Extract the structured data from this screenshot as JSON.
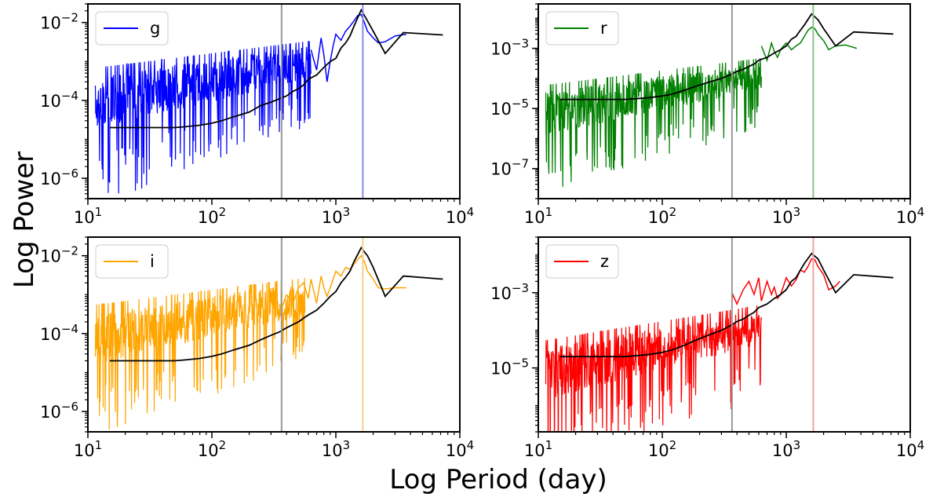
{
  "figure": {
    "xlabel": "Log Period (day)",
    "ylabel": "Log Power"
  },
  "chart_data": [
    {
      "type": "line",
      "band": "g",
      "legend": "g",
      "color": "#0000ff",
      "xscale": "log",
      "yscale": "log",
      "xlim": [
        10,
        10000
      ],
      "ylim": [
        3e-07,
        0.03
      ],
      "xticks": [
        {
          "base": "10",
          "exp": "1",
          "value": 10
        },
        {
          "base": "10",
          "exp": "2",
          "value": 100
        },
        {
          "base": "10",
          "exp": "3",
          "value": 1000
        },
        {
          "base": "10",
          "exp": "4",
          "value": 10000
        }
      ],
      "yticks": [
        {
          "base": "10",
          "exp": "−6",
          "value": 1e-06
        },
        {
          "base": "10",
          "exp": "−4",
          "value": 0.0001
        },
        {
          "base": "10",
          "exp": "−2",
          "value": 0.01
        }
      ],
      "vlines": [
        {
          "x": 365,
          "color": "#999999"
        },
        {
          "x": 1650,
          "color": "#8a8aee"
        }
      ],
      "noise": {
        "logP_start": 1.06,
        "logP_end": 2.8,
        "base_start": -4.2,
        "base_end": -3.1,
        "amp_start": 2.3,
        "amp_end": 1.4
      },
      "series": [
        {
          "role": "band",
          "color": "#0000ff",
          "x": [
            630,
            700,
            760,
            800,
            850,
            900,
            950,
            1000,
            1100,
            1200,
            1300,
            1400,
            1500,
            1600,
            1700,
            1800,
            2000,
            2200,
            2500,
            3000,
            3700
          ],
          "y": [
            0.002,
            0.0006,
            0.004,
            0.0015,
            0.0003,
            0.001,
            0.0025,
            0.005,
            0.0035,
            0.006,
            0.008,
            0.011,
            0.015,
            0.016,
            0.01,
            0.006,
            0.004,
            0.003,
            0.0032,
            0.0045,
            0.005
          ]
        },
        {
          "role": "model",
          "color": "#000000",
          "x": [
            15,
            20,
            25,
            30,
            40,
            50,
            60,
            80,
            100,
            120,
            150,
            200,
            250,
            300,
            350,
            400,
            450,
            500,
            550,
            600,
            700,
            800,
            900,
            1000,
            1100,
            1200,
            1300,
            1400,
            1600,
            1800,
            2000,
            2500,
            3500,
            7300
          ],
          "y": [
            2e-05,
            2e-05,
            2e-05,
            2e-05,
            2e-05,
            2e-05,
            2.1e-05,
            2.3e-05,
            2.6e-05,
            3e-05,
            3.8e-05,
            5e-05,
            7.5e-05,
            9e-05,
            0.00011,
            0.00013,
            0.00017,
            0.0002,
            0.00025,
            0.00035,
            0.00045,
            0.0007,
            0.001,
            0.0012,
            0.0022,
            0.003,
            0.0045,
            0.008,
            0.021,
            0.011,
            0.006,
            0.0016,
            0.0055,
            0.0048
          ]
        }
      ]
    },
    {
      "type": "line",
      "band": "r",
      "legend": "r",
      "color": "#007f00",
      "xscale": "log",
      "yscale": "log",
      "xlim": [
        10,
        10000
      ],
      "ylim": [
        1e-08,
        0.03
      ],
      "xticks": [
        {
          "base": "10",
          "exp": "1",
          "value": 10
        },
        {
          "base": "10",
          "exp": "2",
          "value": 100
        },
        {
          "base": "10",
          "exp": "3",
          "value": 1000
        },
        {
          "base": "10",
          "exp": "4",
          "value": 10000
        }
      ],
      "yticks": [
        {
          "base": "10",
          "exp": "−7",
          "value": 1e-07
        },
        {
          "base": "10",
          "exp": "−5",
          "value": 1e-05
        },
        {
          "base": "10",
          "exp": "−3",
          "value": 0.001
        }
      ],
      "vlines": [
        {
          "x": 365,
          "color": "#999999"
        },
        {
          "x": 1650,
          "color": "#88c488"
        }
      ],
      "noise": {
        "logP_start": 1.06,
        "logP_end": 2.8,
        "base_start": -5.3,
        "base_end": -4.0,
        "amp_start": 2.4,
        "amp_end": 1.5
      },
      "series": [
        {
          "role": "band",
          "color": "#007f00",
          "x": [
            630,
            700,
            760,
            800,
            850,
            900,
            950,
            1000,
            1100,
            1200,
            1300,
            1400,
            1500,
            1600,
            1700,
            1800,
            2000,
            2200,
            2500,
            3000,
            3700
          ],
          "y": [
            0.0012,
            0.0004,
            0.0015,
            0.0008,
            0.0005,
            0.0009,
            0.0012,
            0.0015,
            0.0009,
            0.0012,
            0.0015,
            0.0025,
            0.004,
            0.005,
            0.0045,
            0.003,
            0.0018,
            0.0009,
            0.0012,
            0.0013,
            0.001
          ]
        },
        {
          "role": "model",
          "color": "#000000",
          "x": [
            15,
            20,
            25,
            30,
            40,
            50,
            60,
            80,
            100,
            120,
            150,
            200,
            250,
            300,
            350,
            400,
            450,
            500,
            550,
            600,
            700,
            800,
            900,
            1000,
            1100,
            1200,
            1300,
            1400,
            1600,
            1800,
            2000,
            2500,
            3500,
            7300
          ],
          "y": [
            2e-05,
            2e-05,
            2e-05,
            2e-05,
            2e-05,
            2e-05,
            2.1e-05,
            2.3e-05,
            2.6e-05,
            3e-05,
            4e-05,
            6e-05,
            8e-05,
            0.0001,
            0.00013,
            0.00017,
            0.0002,
            0.00025,
            0.0003,
            0.0004,
            0.0005,
            0.0007,
            0.0009,
            0.0012,
            0.002,
            0.0025,
            0.004,
            0.006,
            0.014,
            0.009,
            0.0045,
            0.0012,
            0.0035,
            0.003
          ]
        }
      ]
    },
    {
      "type": "line",
      "band": "i",
      "legend": "i",
      "color": "#ffa500",
      "xscale": "log",
      "yscale": "log",
      "xlim": [
        10,
        10000
      ],
      "ylim": [
        3e-07,
        0.03
      ],
      "xticks": [
        {
          "base": "10",
          "exp": "1",
          "value": 10
        },
        {
          "base": "10",
          "exp": "2",
          "value": 100
        },
        {
          "base": "10",
          "exp": "3",
          "value": 1000
        },
        {
          "base": "10",
          "exp": "4",
          "value": 10000
        }
      ],
      "yticks": [
        {
          "base": "10",
          "exp": "−6",
          "value": 1e-06
        },
        {
          "base": "10",
          "exp": "−4",
          "value": 0.0001
        },
        {
          "base": "10",
          "exp": "−2",
          "value": 0.01
        }
      ],
      "vlines": [
        {
          "x": 365,
          "color": "#999999"
        },
        {
          "x": 1650,
          "color": "#f5d28a"
        }
      ],
      "noise": {
        "logP_start": 1.06,
        "logP_end": 2.75,
        "base_start": -4.25,
        "base_end": -3.2,
        "amp_start": 2.2,
        "amp_end": 1.4
      },
      "series": [
        {
          "role": "band",
          "color": "#ffa500",
          "x": [
            360,
            370,
            400,
            450,
            500,
            550,
            600,
            630,
            700,
            760,
            800,
            850,
            900,
            950,
            1000,
            1100,
            1200,
            1300,
            1400,
            1500,
            1600,
            1700,
            1800,
            2000,
            2200,
            2500,
            3000,
            3700
          ],
          "y": [
            2e-05,
            0.0005,
            0.001,
            0.0006,
            0.0015,
            0.002,
            0.0008,
            0.0025,
            0.0006,
            0.003,
            0.0015,
            0.0009,
            0.0015,
            0.0025,
            0.004,
            0.003,
            0.005,
            0.0045,
            0.006,
            0.008,
            0.01,
            0.007,
            0.004,
            0.0025,
            0.0015,
            0.0014,
            0.0015,
            0.0015
          ]
        },
        {
          "role": "model",
          "color": "#000000",
          "x": [
            15,
            20,
            25,
            30,
            40,
            50,
            60,
            80,
            100,
            120,
            150,
            200,
            250,
            300,
            350,
            400,
            450,
            500,
            550,
            600,
            700,
            800,
            900,
            1000,
            1100,
            1200,
            1300,
            1400,
            1600,
            1800,
            2000,
            2500,
            3500,
            7300
          ],
          "y": [
            2e-05,
            2e-05,
            2e-05,
            2e-05,
            2e-05,
            2e-05,
            2.1e-05,
            2.3e-05,
            2.6e-05,
            3e-05,
            3.8e-05,
            5e-05,
            7e-05,
            9e-05,
            0.00011,
            0.00014,
            0.00017,
            0.0002,
            0.00025,
            0.0003,
            0.0004,
            0.0006,
            0.0009,
            0.0012,
            0.002,
            0.0028,
            0.004,
            0.007,
            0.016,
            0.01,
            0.005,
            0.0009,
            0.003,
            0.0025
          ]
        }
      ]
    },
    {
      "type": "line",
      "band": "z",
      "legend": "z",
      "color": "#ff0000",
      "xscale": "log",
      "yscale": "log",
      "xlim": [
        10,
        10000
      ],
      "ylim": [
        2e-07,
        0.03
      ],
      "xticks": [
        {
          "base": "10",
          "exp": "1",
          "value": 10
        },
        {
          "base": "10",
          "exp": "2",
          "value": 100
        },
        {
          "base": "10",
          "exp": "3",
          "value": 1000
        },
        {
          "base": "10",
          "exp": "4",
          "value": 10000
        }
      ],
      "yticks": [
        {
          "base": "10",
          "exp": "−5",
          "value": 1e-05
        },
        {
          "base": "10",
          "exp": "−3",
          "value": 0.001
        }
      ],
      "vlines": [
        {
          "x": 365,
          "color": "#999999"
        },
        {
          "x": 1650,
          "color": "#f2a0a0"
        }
      ],
      "noise": {
        "logP_start": 1.06,
        "logP_end": 2.8,
        "base_start": -5.3,
        "base_end": -4.0,
        "amp_start": 2.3,
        "amp_end": 1.5
      },
      "series": [
        {
          "role": "band",
          "color": "#ff0000",
          "x": [
            360,
            365,
            370,
            400,
            450,
            500,
            550,
            600,
            630,
            700,
            760,
            800,
            850,
            900,
            950,
            1000,
            1100,
            1200,
            1300,
            1400,
            1500,
            1600,
            1700,
            1800,
            2000,
            2200,
            2500,
            2700
          ],
          "y": [
            8e-07,
            0.0006,
            0.0009,
            0.0005,
            0.0012,
            0.002,
            0.0009,
            0.0025,
            0.0006,
            0.002,
            0.0009,
            0.0014,
            0.0007,
            0.0009,
            0.0015,
            0.0025,
            0.0015,
            0.0022,
            0.004,
            0.0035,
            0.005,
            0.008,
            0.0075,
            0.005,
            0.003,
            0.0012,
            0.0015,
            0.002
          ]
        },
        {
          "role": "model",
          "color": "#000000",
          "x": [
            15,
            20,
            25,
            30,
            40,
            50,
            60,
            80,
            100,
            120,
            150,
            200,
            250,
            300,
            350,
            400,
            450,
            500,
            550,
            600,
            700,
            800,
            900,
            1000,
            1100,
            1200,
            1300,
            1400,
            1600,
            1800,
            2000,
            2500,
            3500,
            7300
          ],
          "y": [
            2e-05,
            2e-05,
            2e-05,
            2e-05,
            2e-05,
            2e-05,
            2.1e-05,
            2.3e-05,
            2.6e-05,
            3e-05,
            4e-05,
            6e-05,
            8e-05,
            0.0001,
            0.00013,
            0.00017,
            0.0002,
            0.00025,
            0.0003,
            0.0004,
            0.0005,
            0.0007,
            0.0009,
            0.0012,
            0.002,
            0.0025,
            0.004,
            0.006,
            0.011,
            0.008,
            0.004,
            0.001,
            0.003,
            0.0025
          ]
        }
      ]
    }
  ]
}
